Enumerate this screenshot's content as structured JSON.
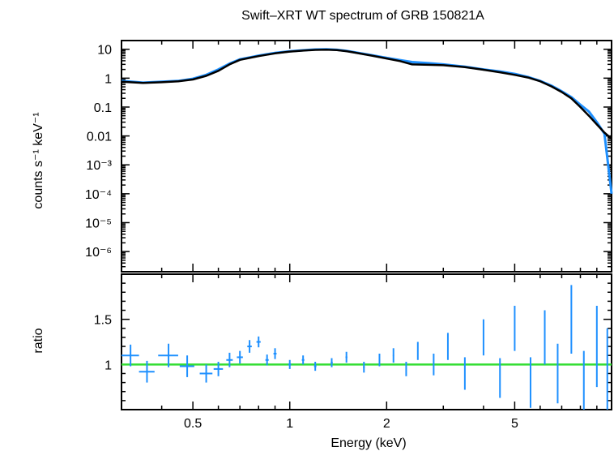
{
  "chart_data": {
    "title": "Swift–XRT WT spectrum of GRB 150821A",
    "xlabel": "Energy (keV)",
    "x_scale": "log",
    "xlim": [
      0.3,
      10
    ],
    "x_ticks": [
      {
        "value": 0.5,
        "label": "0.5"
      },
      {
        "value": 1,
        "label": "1"
      },
      {
        "value": 2,
        "label": "2"
      },
      {
        "value": 5,
        "label": "5"
      }
    ],
    "colors": {
      "data": "#1e90ff",
      "model": "#000000",
      "unity_line": "#33dd33",
      "frame": "#000000"
    },
    "panels": [
      {
        "name": "spectrum",
        "type": "line",
        "ylabel": "counts s⁻¹ keV⁻¹",
        "y_scale": "log",
        "ylim": [
          2e-07,
          20
        ],
        "y_ticks": [
          {
            "value": 10,
            "label": "10"
          },
          {
            "value": 1,
            "label": "1"
          },
          {
            "value": 0.1,
            "label": "0.1"
          },
          {
            "value": 0.01,
            "label": "0.01"
          },
          {
            "value": 0.001,
            "label": "10⁻³"
          },
          {
            "value": 0.0001,
            "label": "10⁻⁴"
          },
          {
            "value": 1e-05,
            "label": "10⁻⁵"
          },
          {
            "value": 1e-06,
            "label": "10⁻⁶"
          }
        ],
        "series": [
          {
            "role": "data",
            "x": [
              0.3,
              0.35,
              0.4,
              0.45,
              0.5,
              0.55,
              0.6,
              0.65,
              0.7,
              0.75,
              0.8,
              0.9,
              1.0,
              1.1,
              1.2,
              1.3,
              1.4,
              1.5,
              1.6,
              1.8,
              2.0,
              2.2,
              2.4,
              2.7,
              3.0,
              3.5,
              4.0,
              4.5,
              5.0,
              5.5,
              6.0,
              6.5,
              7.0,
              7.5,
              8.0,
              8.5,
              9.0,
              9.5,
              10.0
            ],
            "y": [
              0.8,
              0.7,
              0.75,
              0.8,
              0.95,
              1.3,
              2.0,
              3.2,
              4.5,
              5.2,
              6.0,
              7.5,
              8.5,
              9.2,
              9.8,
              10.0,
              9.6,
              8.8,
              7.8,
              6.2,
              5.0,
              4.2,
              3.6,
              3.3,
              3.0,
              2.5,
              2.0,
              1.7,
              1.4,
              1.1,
              0.8,
              0.55,
              0.35,
              0.22,
              0.12,
              0.07,
              0.03,
              0.012,
              0.0001
            ]
          },
          {
            "role": "model",
            "x": [
              0.3,
              0.35,
              0.4,
              0.45,
              0.5,
              0.55,
              0.6,
              0.65,
              0.7,
              0.75,
              0.8,
              0.9,
              1.0,
              1.1,
              1.2,
              1.3,
              1.4,
              1.5,
              1.6,
              1.8,
              2.0,
              2.2,
              2.4,
              2.7,
              3.0,
              3.5,
              4.0,
              4.5,
              5.0,
              5.5,
              6.0,
              6.5,
              7.0,
              7.5,
              8.0,
              8.5,
              9.0,
              9.5,
              10.0
            ],
            "y": [
              0.75,
              0.68,
              0.72,
              0.78,
              0.9,
              1.2,
              1.8,
              3.0,
              4.3,
              5.0,
              5.8,
              7.2,
              8.3,
              9.0,
              9.5,
              9.7,
              9.4,
              8.6,
              7.6,
              6.0,
              4.8,
              3.9,
              3.0,
              2.9,
              2.8,
              2.4,
              1.95,
              1.6,
              1.3,
              1.05,
              0.78,
              0.52,
              0.33,
              0.2,
              0.1,
              0.05,
              0.025,
              0.013,
              0.008
            ]
          }
        ]
      },
      {
        "name": "ratio",
        "type": "scatter",
        "ylabel": "ratio",
        "y_scale": "linear",
        "ylim": [
          0.5,
          2.0
        ],
        "y_ticks": [
          {
            "value": 1,
            "label": "1"
          },
          {
            "value": 1.5,
            "label": "1.5"
          }
        ],
        "reference_line": 1,
        "points": [
          {
            "x": 0.32,
            "y": 1.1,
            "xerr": 0.02,
            "yerr": 0.12
          },
          {
            "x": 0.36,
            "y": 0.92,
            "xerr": 0.02,
            "yerr": 0.12
          },
          {
            "x": 0.42,
            "y": 1.1,
            "xerr": 0.03,
            "yerr": 0.13
          },
          {
            "x": 0.48,
            "y": 0.98,
            "xerr": 0.025,
            "yerr": 0.12
          },
          {
            "x": 0.55,
            "y": 0.9,
            "xerr": 0.025,
            "yerr": 0.1
          },
          {
            "x": 0.6,
            "y": 0.95,
            "xerr": 0.02,
            "yerr": 0.08
          },
          {
            "x": 0.65,
            "y": 1.05,
            "xerr": 0.015,
            "yerr": 0.08
          },
          {
            "x": 0.7,
            "y": 1.08,
            "xerr": 0.015,
            "yerr": 0.07
          },
          {
            "x": 0.75,
            "y": 1.2,
            "xerr": 0.012,
            "yerr": 0.07
          },
          {
            "x": 0.8,
            "y": 1.25,
            "xerr": 0.012,
            "yerr": 0.06
          },
          {
            "x": 0.85,
            "y": 1.05,
            "xerr": 0.01,
            "yerr": 0.06
          },
          {
            "x": 0.9,
            "y": 1.12,
            "xerr": 0.01,
            "yerr": 0.06
          },
          {
            "x": 1.0,
            "y": 1.0,
            "xerr": 0.01,
            "yerr": 0.05
          },
          {
            "x": 1.1,
            "y": 1.05,
            "xerr": 0.01,
            "yerr": 0.05
          },
          {
            "x": 1.2,
            "y": 0.98,
            "xerr": 0.01,
            "yerr": 0.05
          },
          {
            "x": 1.35,
            "y": 1.02,
            "xerr": 0.01,
            "yerr": 0.05
          },
          {
            "x": 1.5,
            "y": 1.08,
            "xerr": 0.01,
            "yerr": 0.06
          },
          {
            "x": 1.7,
            "y": 0.97,
            "xerr": 0.01,
            "yerr": 0.06
          },
          {
            "x": 1.9,
            "y": 1.05,
            "xerr": 0.01,
            "yerr": 0.07
          },
          {
            "x": 2.1,
            "y": 1.1,
            "xerr": 0.01,
            "yerr": 0.08
          },
          {
            "x": 2.3,
            "y": 0.95,
            "xerr": 0.01,
            "yerr": 0.08
          },
          {
            "x": 2.5,
            "y": 1.15,
            "xerr": 0.01,
            "yerr": 0.1
          },
          {
            "x": 2.8,
            "y": 1.0,
            "xerr": 0.01,
            "yerr": 0.12
          },
          {
            "x": 3.1,
            "y": 1.2,
            "xerr": 0.01,
            "yerr": 0.15
          },
          {
            "x": 3.5,
            "y": 0.9,
            "xerr": 0.01,
            "yerr": 0.18
          },
          {
            "x": 4.0,
            "y": 1.3,
            "xerr": 0.01,
            "yerr": 0.2
          },
          {
            "x": 4.5,
            "y": 0.85,
            "xerr": 0.01,
            "yerr": 0.22
          },
          {
            "x": 5.0,
            "y": 1.4,
            "xerr": 0.01,
            "yerr": 0.25
          },
          {
            "x": 5.6,
            "y": 0.8,
            "xerr": 0.01,
            "yerr": 0.28
          },
          {
            "x": 6.2,
            "y": 1.3,
            "xerr": 0.01,
            "yerr": 0.3
          },
          {
            "x": 6.8,
            "y": 0.9,
            "xerr": 0.01,
            "yerr": 0.33
          },
          {
            "x": 7.5,
            "y": 1.5,
            "xerr": 0.01,
            "yerr": 0.38
          },
          {
            "x": 8.2,
            "y": 0.75,
            "xerr": 0.01,
            "yerr": 0.4
          },
          {
            "x": 9.0,
            "y": 1.2,
            "xerr": 0.02,
            "yerr": 0.45
          },
          {
            "x": 9.7,
            "y": 0.9,
            "xerr": 0.02,
            "yerr": 0.5
          }
        ]
      }
    ]
  }
}
